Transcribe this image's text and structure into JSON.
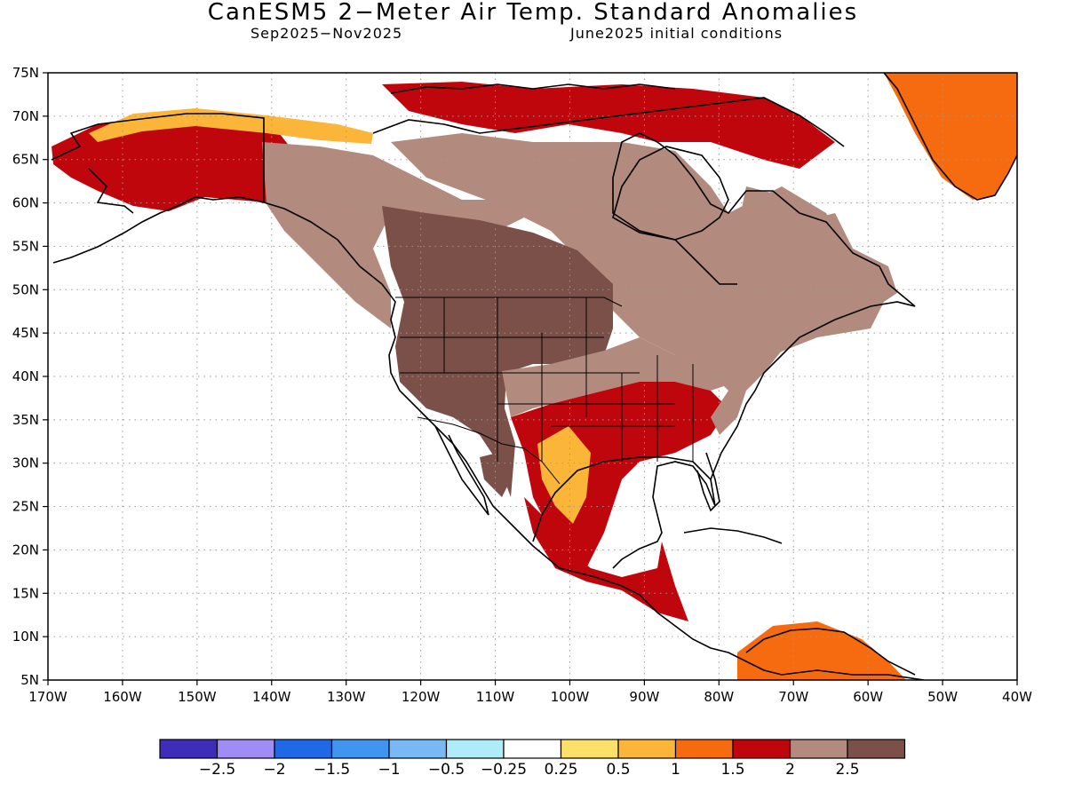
{
  "title": "CanESM5 2−Meter Air Temp. Standard Anomalies",
  "subtitle_left": "Sep2025−Nov2025",
  "subtitle_right": "June2025 initial conditions",
  "map": {
    "lon_range": [
      -170,
      -40
    ],
    "lat_range": [
      5,
      75
    ],
    "x_tick_labels": [
      "170W",
      "160W",
      "150W",
      "140W",
      "130W",
      "120W",
      "110W",
      "100W",
      "90W",
      "80W",
      "70W",
      "60W",
      "50W",
      "40W"
    ],
    "y_tick_labels": [
      "5N",
      "10N",
      "15N",
      "20N",
      "25N",
      "30N",
      "35N",
      "40N",
      "45N",
      "50N",
      "55N",
      "60N",
      "65N",
      "70N",
      "75N"
    ],
    "grid": "dotted"
  },
  "colorbar": {
    "colors": [
      "#3d2db8",
      "#a08cf5",
      "#1f68e6",
      "#3f95f0",
      "#78b8f5",
      "#b0ecf8",
      "#ffffff",
      "#fde06a",
      "#fbb63a",
      "#f66b0f",
      "#c0060d",
      "#b38a7e",
      "#7a5048"
    ],
    "labels": [
      "−2.5",
      "−2",
      "−1.5",
      "−1",
      "−0.5",
      "−0.25",
      "0.25",
      "0.5",
      "1",
      "1.5",
      "2",
      "2.5"
    ]
  },
  "anomaly_regions": [
    {
      "name": "alaska-west",
      "level": 1.5
    },
    {
      "name": "alaska-north-coast",
      "level": 0.5
    },
    {
      "name": "yukon-bc",
      "level": 2
    },
    {
      "name": "canada-central",
      "level": 2
    },
    {
      "name": "arctic-islands",
      "level": 1.5
    },
    {
      "name": "us-west-interior",
      "level": 2.5
    },
    {
      "name": "mexico-north",
      "level": 2.5
    },
    {
      "name": "us-great-plains",
      "level": 2
    },
    {
      "name": "us-southern-plains",
      "level": 1.5
    },
    {
      "name": "texas-core",
      "level": 0.5
    },
    {
      "name": "us-southeast",
      "level": 1.5
    },
    {
      "name": "us-east",
      "level": 2
    },
    {
      "name": "mexico-gulf-coast",
      "level": 1.5
    },
    {
      "name": "central-america",
      "level": 1.5
    },
    {
      "name": "venezuela",
      "level": 1
    },
    {
      "name": "greenland-south",
      "level": 1
    },
    {
      "name": "quebec-labrador",
      "level": 2
    }
  ]
}
